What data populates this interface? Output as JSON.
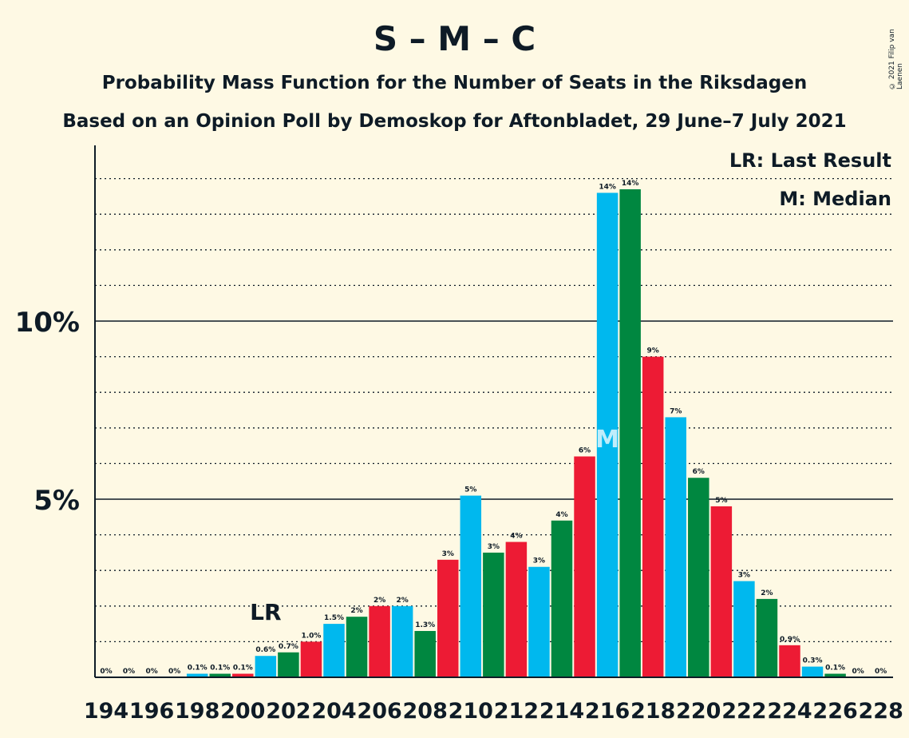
{
  "header": {
    "title": "S – M – C",
    "subtitle1": "Probability Mass Function for the Number of Seats in the Riksdagen",
    "subtitle2": "Based on an Opinion Poll by Demoskop for Aftonbladet, 29 June–7 July 2021",
    "copyright": "© 2021 Filip van Laenen"
  },
  "legend": {
    "last_result": "LR: Last Result",
    "median": "M: Median"
  },
  "colors": {
    "background": "#fef9e4",
    "text": "#0e1b26",
    "S": "#ed1b34",
    "M": "#00b8ee",
    "C": "#008740"
  },
  "chart_data": {
    "type": "bar",
    "x": [
      194,
      195,
      196,
      197,
      198,
      199,
      200,
      201,
      202,
      203,
      204,
      205,
      206,
      207,
      208,
      209,
      210,
      211,
      212,
      213,
      214,
      215,
      216,
      217,
      218,
      219,
      220,
      221,
      222,
      223,
      224,
      225,
      226,
      227,
      228
    ],
    "values": [
      0,
      0,
      0,
      0,
      0.1,
      0.1,
      0.1,
      0.6,
      0.7,
      1.0,
      1.5,
      1.7,
      2.0,
      2.0,
      1.3,
      3.3,
      5.1,
      3.5,
      3.8,
      3.1,
      4.4,
      6.2,
      13.6,
      13.7,
      9.0,
      7.3,
      5.6,
      4.8,
      2.7,
      2.2,
      0.9,
      0.3,
      0.1,
      0,
      0
    ],
    "labels": [
      "0%",
      "0%",
      "0%",
      "0%",
      "0.1%",
      "0.1%",
      "0.1%",
      "0.6%",
      "0.7%",
      "1.0%",
      "1.5%",
      "2%",
      "2%",
      "2%",
      "1.3%",
      "3%",
      "5%",
      "3%",
      "4%",
      "3%",
      "4%",
      "6%",
      "14%",
      "14%",
      "9%",
      "7%",
      "6%",
      "5%",
      "3%",
      "2%",
      "0.9%",
      "0.3%",
      "0.1%",
      "0%",
      "0%"
    ],
    "color_cycle": [
      "S",
      "M",
      "C"
    ],
    "x_ticks": [
      "194",
      "196",
      "198",
      "200",
      "202",
      "204",
      "206",
      "208",
      "210",
      "212",
      "214",
      "216",
      "218",
      "220",
      "222",
      "224",
      "226",
      "228"
    ],
    "y_ticks": [
      {
        "value": 5,
        "label": "5%"
      },
      {
        "value": 10,
        "label": "10%"
      }
    ],
    "ylim": [
      0,
      14.9
    ],
    "grid": "dotted at every 1%, solid at 5% and 10%",
    "last_result": {
      "seat": 201,
      "label": "LR"
    },
    "median": {
      "seat": 216,
      "label": "M"
    },
    "legend_position": "top-right"
  }
}
